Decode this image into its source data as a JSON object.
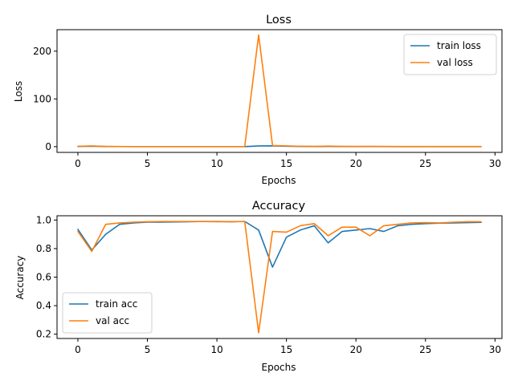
{
  "chart_data": [
    {
      "type": "line",
      "title": "Loss",
      "xlabel": "Epochs",
      "ylabel": "Loss",
      "xlim": [
        -1.5,
        30.5
      ],
      "ylim": [
        -12,
        245
      ],
      "xticks": [
        0,
        5,
        10,
        15,
        20,
        25,
        30
      ],
      "yticks": [
        0,
        100,
        200
      ],
      "legend": "top-right",
      "x": [
        0,
        1,
        2,
        3,
        4,
        5,
        6,
        7,
        8,
        9,
        10,
        11,
        12,
        13,
        14,
        15,
        16,
        17,
        18,
        19,
        20,
        21,
        22,
        23,
        24,
        25,
        26,
        27,
        28,
        29
      ],
      "series": [
        {
          "name": "train loss",
          "color": "#1f77b4",
          "values": [
            0.5,
            0.8,
            0.3,
            0.2,
            0.1,
            0.1,
            0.1,
            0.1,
            0.1,
            0.1,
            0.1,
            0.1,
            0.1,
            1.5,
            1.8,
            0.8,
            0.5,
            0.3,
            0.5,
            0.3,
            0.2,
            0.3,
            0.2,
            0.1,
            0.1,
            0.1,
            0.1,
            0.1,
            0.1,
            0.1
          ]
        },
        {
          "name": "val loss",
          "color": "#ff7f0e",
          "values": [
            0.8,
            1.5,
            0.5,
            0.3,
            0.2,
            0.2,
            0.2,
            0.2,
            0.2,
            0.2,
            0.2,
            0.2,
            0.3,
            234,
            2.5,
            1.5,
            0.8,
            0.5,
            1.2,
            0.5,
            0.5,
            0.5,
            0.5,
            0.3,
            0.3,
            0.3,
            0.3,
            0.3,
            0.3,
            0.3
          ]
        }
      ]
    },
    {
      "type": "line",
      "title": "Accuracy",
      "xlabel": "Epochs",
      "ylabel": "Accuracy",
      "xlim": [
        -1.5,
        30.5
      ],
      "ylim": [
        0.17,
        1.03
      ],
      "xticks": [
        0,
        5,
        10,
        15,
        20,
        25,
        30
      ],
      "yticks": [
        0.2,
        0.4,
        0.6,
        0.8,
        1.0
      ],
      "ytick_labels": [
        "0.2",
        "0.4",
        "0.6",
        "0.8",
        "1.0"
      ],
      "legend": "lower-left",
      "x": [
        0,
        1,
        2,
        3,
        4,
        5,
        6,
        7,
        8,
        9,
        10,
        11,
        12,
        13,
        14,
        15,
        16,
        17,
        18,
        19,
        20,
        21,
        22,
        23,
        24,
        25,
        26,
        27,
        28,
        29
      ],
      "series": [
        {
          "name": "train acc",
          "color": "#1f77b4",
          "values": [
            0.935,
            0.79,
            0.9,
            0.97,
            0.98,
            0.985,
            0.985,
            0.987,
            0.988,
            0.99,
            0.99,
            0.988,
            0.99,
            0.93,
            0.67,
            0.88,
            0.93,
            0.96,
            0.84,
            0.92,
            0.93,
            0.94,
            0.92,
            0.96,
            0.97,
            0.975,
            0.978,
            0.98,
            0.982,
            0.984
          ]
        },
        {
          "name": "val acc",
          "color": "#ff7f0e",
          "values": [
            0.92,
            0.78,
            0.97,
            0.98,
            0.985,
            0.988,
            0.99,
            0.99,
            0.99,
            0.99,
            0.988,
            0.988,
            0.99,
            0.21,
            0.92,
            0.915,
            0.96,
            0.975,
            0.89,
            0.95,
            0.95,
            0.89,
            0.96,
            0.97,
            0.98,
            0.982,
            0.98,
            0.985,
            0.988,
            0.988
          ]
        }
      ]
    }
  ]
}
